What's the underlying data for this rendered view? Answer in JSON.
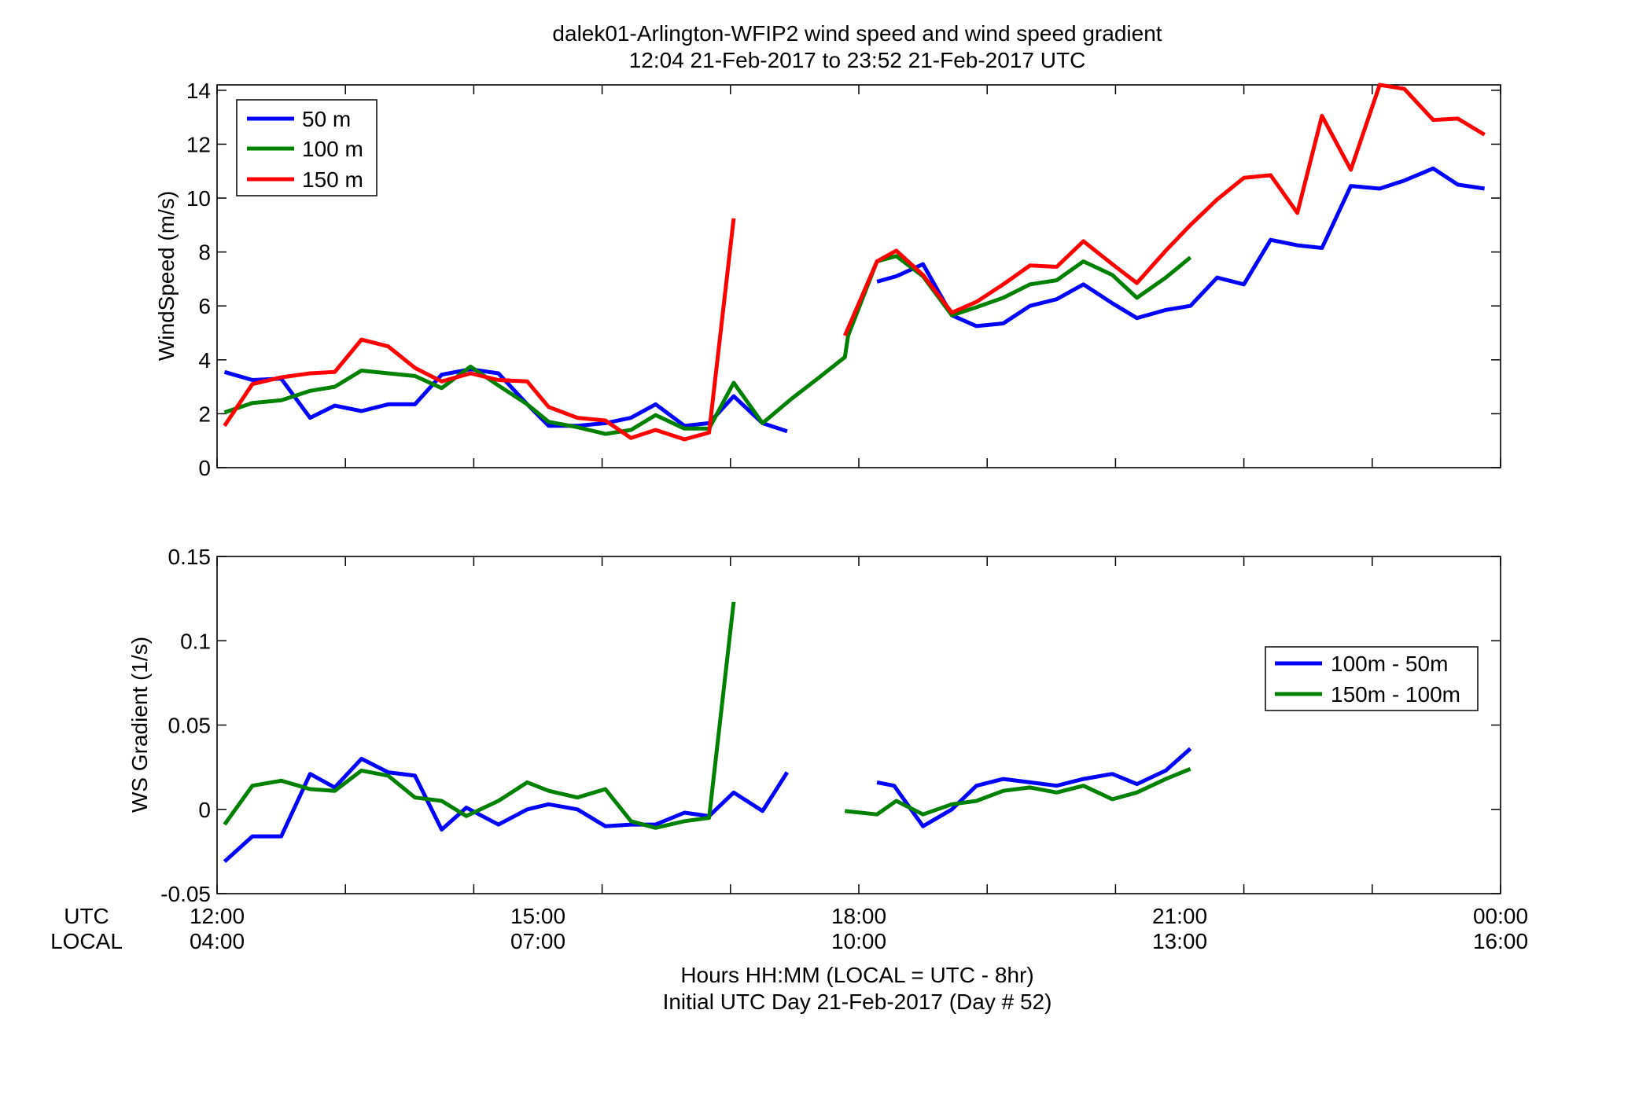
{
  "title": {
    "line1": "dalek01-Arlington-WFIP2  wind speed and wind speed gradient",
    "line2": "12:04 21-Feb-2017 to 23:52 21-Feb-2017  UTC"
  },
  "xaxis": {
    "row_label_utc": "UTC",
    "row_label_local": "LOCAL",
    "label_line1": "Hours HH:MM  (LOCAL = UTC - 8hr)",
    "label_line2": "Initial UTC Day 21-Feb-2017 (Day # 52)"
  },
  "chart_data": [
    {
      "type": "line",
      "ylabel": "WindSpeed (m/s)",
      "xlim": [
        12,
        24
      ],
      "ylim": [
        0,
        14.2
      ],
      "yticks": [
        0,
        2,
        4,
        6,
        8,
        10,
        12,
        14
      ],
      "ytick_labels": [
        "0",
        "2",
        "4",
        "6",
        "8",
        "10",
        "12",
        "14"
      ],
      "xticks": [
        12,
        13.2,
        14.4,
        15.6,
        16.8,
        18,
        19.2,
        20.4,
        21.6,
        22.8,
        24
      ],
      "grid": false,
      "legend_position": "top-left",
      "series": [
        {
          "name": "50 m",
          "color": "#0000ff",
          "points": [
            [
              12.07,
              3.55
            ],
            [
              12.33,
              3.25
            ],
            [
              12.6,
              3.3
            ],
            [
              12.87,
              1.85
            ],
            [
              13.1,
              2.3
            ],
            [
              13.35,
              2.1
            ],
            [
              13.6,
              2.35
            ],
            [
              13.85,
              2.35
            ],
            [
              14.1,
              3.45
            ],
            [
              14.37,
              3.65
            ],
            [
              14.63,
              3.5
            ],
            [
              14.9,
              2.35
            ],
            [
              15.1,
              1.55
            ],
            [
              15.37,
              1.55
            ],
            [
              15.63,
              1.65
            ],
            [
              15.87,
              1.85
            ],
            [
              16.1,
              2.35
            ],
            [
              16.37,
              1.55
            ],
            [
              16.6,
              1.65
            ],
            [
              16.83,
              2.65
            ],
            [
              17.1,
              1.65
            ],
            [
              17.33,
              1.35
            ],
            null,
            [
              18.17,
              6.9
            ],
            [
              18.35,
              7.1
            ],
            [
              18.6,
              7.55
            ],
            [
              18.87,
              5.65
            ],
            [
              19.1,
              5.25
            ],
            [
              19.35,
              5.35
            ],
            [
              19.6,
              6.0
            ],
            [
              19.85,
              6.25
            ],
            [
              20.1,
              6.8
            ],
            [
              20.37,
              6.1
            ],
            [
              20.6,
              5.55
            ],
            [
              20.87,
              5.85
            ],
            [
              21.1,
              6.0
            ],
            [
              21.35,
              7.05
            ],
            [
              21.6,
              6.8
            ],
            [
              21.85,
              8.45
            ],
            [
              22.1,
              8.25
            ],
            [
              22.33,
              8.15
            ],
            [
              22.6,
              10.45
            ],
            [
              22.87,
              10.35
            ],
            [
              23.1,
              10.65
            ],
            [
              23.37,
              11.1
            ],
            [
              23.6,
              10.5
            ],
            [
              23.85,
              10.35
            ]
          ]
        },
        {
          "name": "100 m",
          "color": "#008000",
          "points": [
            [
              12.07,
              2.05
            ],
            [
              12.33,
              2.4
            ],
            [
              12.6,
              2.5
            ],
            [
              12.87,
              2.85
            ],
            [
              13.1,
              3.0
            ],
            [
              13.35,
              3.6
            ],
            [
              13.6,
              3.5
            ],
            [
              13.85,
              3.4
            ],
            [
              14.1,
              2.95
            ],
            [
              14.37,
              3.75
            ],
            [
              14.63,
              3.05
            ],
            [
              14.9,
              2.35
            ],
            [
              15.1,
              1.7
            ],
            [
              15.37,
              1.5
            ],
            [
              15.63,
              1.25
            ],
            [
              15.87,
              1.4
            ],
            [
              16.1,
              1.95
            ],
            [
              16.37,
              1.45
            ],
            [
              16.6,
              1.45
            ],
            [
              16.83,
              3.15
            ],
            [
              17.1,
              1.65
            ],
            [
              17.37,
              2.55
            ],
            [
              17.63,
              3.35
            ],
            [
              17.87,
              4.1
            ],
            [
              17.9,
              4.9
            ],
            [
              18.17,
              7.65
            ],
            [
              18.35,
              7.85
            ],
            [
              18.6,
              7.1
            ],
            [
              18.87,
              5.65
            ],
            [
              19.1,
              5.95
            ],
            [
              19.35,
              6.3
            ],
            [
              19.6,
              6.8
            ],
            [
              19.85,
              6.95
            ],
            [
              20.1,
              7.65
            ],
            [
              20.37,
              7.15
            ],
            [
              20.6,
              6.3
            ],
            [
              20.87,
              7.05
            ],
            [
              21.1,
              7.8
            ]
          ]
        },
        {
          "name": "150 m",
          "color": "#ff0000",
          "points": [
            [
              12.07,
              1.55
            ],
            [
              12.33,
              3.1
            ],
            [
              12.6,
              3.35
            ],
            [
              12.87,
              3.5
            ],
            [
              13.1,
              3.55
            ],
            [
              13.35,
              4.75
            ],
            [
              13.6,
              4.5
            ],
            [
              13.85,
              3.7
            ],
            [
              14.1,
              3.2
            ],
            [
              14.37,
              3.5
            ],
            [
              14.63,
              3.25
            ],
            [
              14.9,
              3.2
            ],
            [
              15.1,
              2.25
            ],
            [
              15.37,
              1.85
            ],
            [
              15.63,
              1.75
            ],
            [
              15.87,
              1.1
            ],
            [
              16.1,
              1.4
            ],
            [
              16.37,
              1.05
            ],
            [
              16.6,
              1.3
            ],
            [
              16.83,
              9.25
            ],
            null,
            [
              17.87,
              4.9
            ],
            [
              18.17,
              7.65
            ],
            [
              18.35,
              8.05
            ],
            [
              18.6,
              7.15
            ],
            [
              18.87,
              5.75
            ],
            [
              19.1,
              6.15
            ],
            [
              19.35,
              6.8
            ],
            [
              19.6,
              7.5
            ],
            [
              19.85,
              7.45
            ],
            [
              20.1,
              8.4
            ],
            [
              20.37,
              7.55
            ],
            [
              20.6,
              6.85
            ],
            [
              20.87,
              8.05
            ],
            [
              21.1,
              9.0
            ],
            [
              21.35,
              9.95
            ],
            [
              21.6,
              10.75
            ],
            [
              21.85,
              10.85
            ],
            [
              22.1,
              9.45
            ],
            [
              22.33,
              13.05
            ],
            [
              22.6,
              11.05
            ],
            [
              22.87,
              14.2
            ],
            [
              23.1,
              14.05
            ],
            [
              23.37,
              12.9
            ],
            [
              23.6,
              12.95
            ],
            [
              23.85,
              12.35
            ]
          ]
        }
      ]
    },
    {
      "type": "line",
      "ylabel": "WS Gradient (1/s)",
      "xlim": [
        12,
        24
      ],
      "ylim": [
        -0.05,
        0.15
      ],
      "yticks": [
        -0.05,
        0,
        0.05,
        0.1,
        0.15
      ],
      "ytick_labels": [
        "-0.05",
        "0",
        "0.05",
        "0.1",
        "0.15"
      ],
      "xticks": [
        12,
        13.2,
        14.4,
        15.6,
        16.8,
        18,
        19.2,
        20.4,
        21.6,
        22.8,
        24
      ],
      "xtick_labels_utc": [
        "12:00",
        "15:00",
        "18:00",
        "21:00",
        "00:00"
      ],
      "xtick_labels_local": [
        "04:00",
        "07:00",
        "10:00",
        "13:00",
        "16:00"
      ],
      "xtick_label_positions": [
        12,
        15,
        18,
        21,
        24
      ],
      "grid": false,
      "legend_position": "right",
      "series": [
        {
          "name": "100m - 50m",
          "color": "#0000ff",
          "points": [
            [
              12.07,
              -0.031
            ],
            [
              12.33,
              -0.016
            ],
            [
              12.6,
              -0.016
            ],
            [
              12.87,
              0.021
            ],
            [
              13.1,
              0.013
            ],
            [
              13.35,
              0.03
            ],
            [
              13.6,
              0.022
            ],
            [
              13.85,
              0.02
            ],
            [
              14.1,
              -0.012
            ],
            [
              14.33,
              0.001
            ],
            [
              14.63,
              -0.009
            ],
            [
              14.9,
              0.0
            ],
            [
              15.1,
              0.003
            ],
            [
              15.37,
              0.0
            ],
            [
              15.63,
              -0.01
            ],
            [
              15.87,
              -0.009
            ],
            [
              16.1,
              -0.009
            ],
            [
              16.37,
              -0.002
            ],
            [
              16.6,
              -0.004
            ],
            [
              16.83,
              0.01
            ],
            [
              17.1,
              -0.001
            ],
            [
              17.33,
              0.022
            ],
            null,
            [
              18.17,
              0.016
            ],
            [
              18.33,
              0.014
            ],
            [
              18.6,
              -0.01
            ],
            [
              18.87,
              0.0
            ],
            [
              19.1,
              0.014
            ],
            [
              19.35,
              0.018
            ],
            [
              19.6,
              0.016
            ],
            [
              19.85,
              0.014
            ],
            [
              20.1,
              0.018
            ],
            [
              20.37,
              0.021
            ],
            [
              20.6,
              0.015
            ],
            [
              20.87,
              0.023
            ],
            [
              21.1,
              0.036
            ]
          ]
        },
        {
          "name": "150m - 100m",
          "color": "#008000",
          "points": [
            [
              12.07,
              -0.009
            ],
            [
              12.33,
              0.014
            ],
            [
              12.6,
              0.017
            ],
            [
              12.87,
              0.012
            ],
            [
              13.1,
              0.011
            ],
            [
              13.35,
              0.023
            ],
            [
              13.6,
              0.02
            ],
            [
              13.85,
              0.007
            ],
            [
              14.1,
              0.005
            ],
            [
              14.33,
              -0.004
            ],
            [
              14.63,
              0.005
            ],
            [
              14.9,
              0.016
            ],
            [
              15.1,
              0.011
            ],
            [
              15.37,
              0.007
            ],
            [
              15.63,
              0.012
            ],
            [
              15.87,
              -0.007
            ],
            [
              16.1,
              -0.011
            ],
            [
              16.37,
              -0.007
            ],
            [
              16.6,
              -0.005
            ],
            [
              16.83,
              0.123
            ],
            null,
            [
              17.87,
              -0.001
            ],
            [
              18.17,
              -0.003
            ],
            [
              18.35,
              0.005
            ],
            [
              18.6,
              -0.003
            ],
            [
              18.87,
              0.003
            ],
            [
              19.1,
              0.005
            ],
            [
              19.35,
              0.011
            ],
            [
              19.6,
              0.013
            ],
            [
              19.85,
              0.01
            ],
            [
              20.1,
              0.014
            ],
            [
              20.37,
              0.006
            ],
            [
              20.6,
              0.01
            ],
            [
              20.87,
              0.018
            ],
            [
              21.1,
              0.024
            ]
          ]
        }
      ]
    }
  ]
}
